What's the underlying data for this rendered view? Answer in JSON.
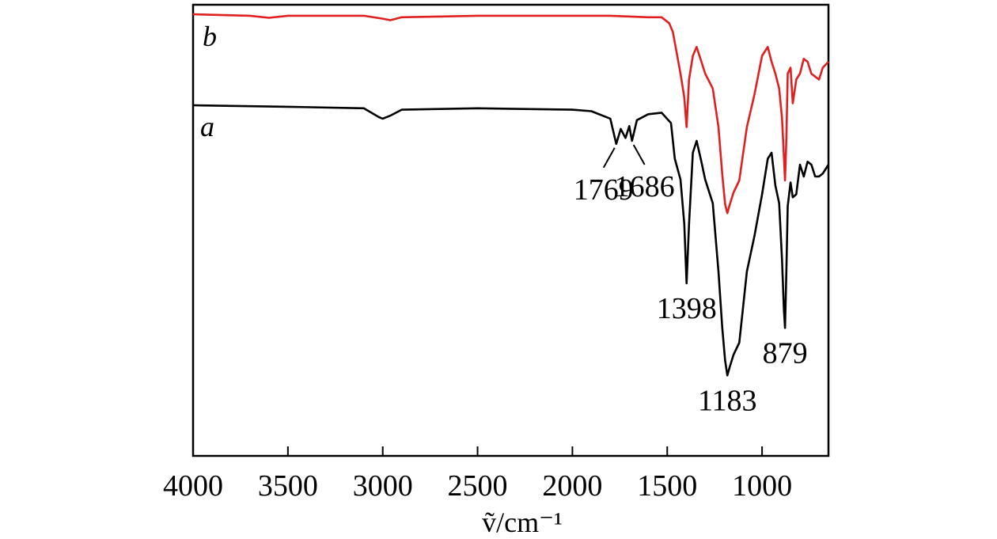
{
  "chart_data": {
    "type": "line",
    "title": "",
    "xlabel": "ṽ/cm⁻¹",
    "ylabel": "",
    "xlim": [
      4000,
      650
    ],
    "x_reversed": true,
    "grid": false,
    "x_ticks": [
      {
        "value": 4000,
        "label": "4000"
      },
      {
        "value": 3500,
        "label": "3500"
      },
      {
        "value": 3000,
        "label": "3000"
      },
      {
        "value": 2500,
        "label": "2500"
      },
      {
        "value": 2000,
        "label": "2000"
      },
      {
        "value": 1500,
        "label": "1500"
      },
      {
        "value": 1000,
        "label": "1000"
      }
    ],
    "y_ticks": [],
    "series": [
      {
        "name": "a",
        "color": "#000000",
        "x": [
          4000,
          3500,
          3100,
          3020,
          3000,
          2960,
          2900,
          2500,
          2000,
          1900,
          1800,
          1769,
          1745,
          1720,
          1700,
          1686,
          1660,
          1600,
          1530,
          1480,
          1460,
          1430,
          1410,
          1398,
          1385,
          1365,
          1345,
          1320,
          1300,
          1260,
          1230,
          1210,
          1195,
          1183,
          1170,
          1150,
          1120,
          1080,
          1040,
          1000,
          970,
          950,
          930,
          910,
          895,
          885,
          879,
          872,
          865,
          850,
          838,
          820,
          800,
          780,
          760,
          740,
          720,
          700,
          680,
          650
        ],
        "y": [
          0.0,
          0.005,
          0.01,
          0.04,
          0.045,
          0.035,
          0.015,
          0.01,
          0.015,
          0.02,
          0.045,
          0.13,
          0.08,
          0.11,
          0.07,
          0.12,
          0.05,
          0.03,
          0.025,
          0.06,
          0.18,
          0.25,
          0.4,
          0.6,
          0.4,
          0.16,
          0.12,
          0.19,
          0.25,
          0.33,
          0.56,
          0.75,
          0.86,
          0.91,
          0.88,
          0.84,
          0.8,
          0.56,
          0.44,
          0.3,
          0.18,
          0.16,
          0.27,
          0.33,
          0.52,
          0.69,
          0.75,
          0.56,
          0.34,
          0.26,
          0.31,
          0.3,
          0.2,
          0.24,
          0.19,
          0.2,
          0.24,
          0.24,
          0.23,
          0.2
        ]
      },
      {
        "name": "b",
        "color": "#e02020",
        "x": [
          4000,
          3700,
          3600,
          3500,
          3100,
          3000,
          2960,
          2900,
          2500,
          2300,
          2000,
          1800,
          1600,
          1530,
          1490,
          1470,
          1450,
          1430,
          1410,
          1398,
          1385,
          1365,
          1345,
          1320,
          1300,
          1260,
          1230,
          1210,
          1195,
          1183,
          1170,
          1150,
          1120,
          1080,
          1040,
          1000,
          970,
          950,
          930,
          910,
          895,
          885,
          879,
          872,
          865,
          850,
          838,
          820,
          800,
          780,
          760,
          740,
          720,
          700,
          680,
          650
        ],
        "y": [
          0.0,
          0.005,
          0.012,
          0.005,
          0.005,
          0.015,
          0.02,
          0.01,
          0.005,
          0.005,
          0.005,
          0.005,
          0.01,
          0.01,
          0.03,
          0.06,
          0.13,
          0.2,
          0.28,
          0.38,
          0.22,
          0.14,
          0.11,
          0.16,
          0.2,
          0.25,
          0.38,
          0.54,
          0.64,
          0.67,
          0.64,
          0.6,
          0.56,
          0.38,
          0.27,
          0.14,
          0.11,
          0.16,
          0.2,
          0.25,
          0.35,
          0.48,
          0.56,
          0.42,
          0.2,
          0.18,
          0.3,
          0.22,
          0.2,
          0.15,
          0.16,
          0.2,
          0.21,
          0.22,
          0.18,
          0.16
        ]
      }
    ],
    "curve_labels": [
      {
        "text": "a",
        "series": "a"
      },
      {
        "text": "b",
        "series": "b"
      }
    ],
    "annotations": [
      {
        "text": "1769",
        "x": 1769,
        "leader": true
      },
      {
        "text": "1686",
        "x": 1686,
        "leader": true
      },
      {
        "text": "1398",
        "x": 1398,
        "leader": false
      },
      {
        "text": "1183",
        "x": 1183,
        "leader": false
      },
      {
        "text": "879",
        "x": 879,
        "leader": false
      }
    ]
  }
}
